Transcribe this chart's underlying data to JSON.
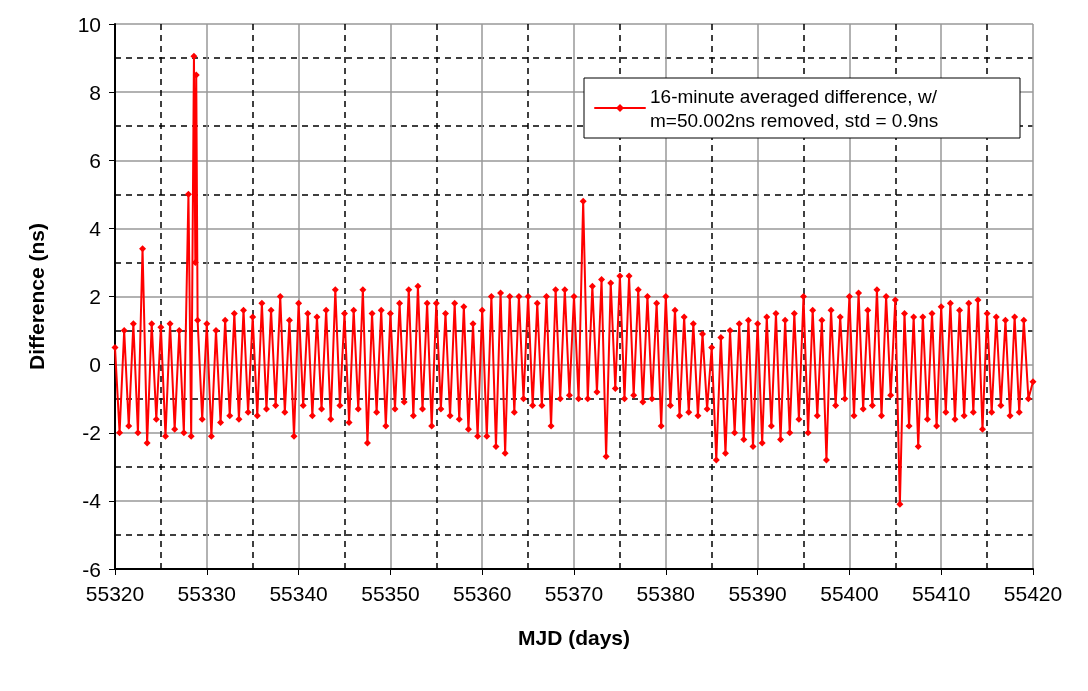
{
  "chart_data": {
    "type": "line",
    "xlabel": "MJD (days)",
    "ylabel": "Difference (ns)",
    "xlim": [
      55320,
      55420
    ],
    "xticks": [
      55320,
      55330,
      55340,
      55350,
      55360,
      55370,
      55380,
      55390,
      55400,
      55410,
      55420
    ],
    "ylim": [
      -6,
      10
    ],
    "yticks": [
      -6,
      -4,
      -2,
      0,
      2,
      4,
      6,
      8,
      10
    ],
    "grid": true,
    "legend": "top right",
    "marker": "diamond",
    "line_style": "solid",
    "series": [
      {
        "name": "16-minute averaged difference, w/ m=50.002ns removed, std = 0.9ns",
        "color": "#ff0000",
        "x": [
          55320,
          55320.5,
          55321,
          55321.5,
          55322,
          55322.5,
          55323,
          55323.5,
          55324,
          55324.5,
          55325,
          55325.5,
          55326,
          55326.5,
          55327,
          55327.5,
          55328,
          55328.3,
          55328.6,
          55328.75,
          55328.85,
          55329,
          55329.5,
          55330,
          55330.5,
          55331,
          55331.5,
          55332,
          55332.5,
          55333,
          55333.5,
          55334,
          55334.5,
          55335,
          55335.5,
          55336,
          55336.5,
          55337,
          55337.5,
          55338,
          55338.5,
          55339,
          55339.5,
          55340,
          55340.5,
          55341,
          55341.5,
          55342,
          55342.5,
          55343,
          55343.5,
          55344,
          55344.5,
          55345,
          55345.5,
          55346,
          55346.5,
          55347,
          55347.5,
          55348,
          55348.5,
          55349,
          55349.5,
          55350,
          55350.5,
          55351,
          55351.5,
          55352,
          55352.5,
          55353,
          55353.5,
          55354,
          55354.5,
          55355,
          55355.5,
          55356,
          55356.5,
          55357,
          55357.5,
          55358,
          55358.5,
          55359,
          55359.5,
          55360,
          55360.5,
          55361,
          55361.5,
          55362,
          55362.5,
          55363,
          55363.5,
          55364,
          55364.5,
          55365,
          55365.5,
          55366,
          55366.5,
          55367,
          55367.5,
          55368,
          55368.5,
          55369,
          55369.5,
          55370,
          55370.5,
          55371,
          55371.5,
          55372,
          55372.5,
          55373,
          55373.5,
          55374,
          55374.5,
          55375,
          55375.5,
          55376,
          55376.5,
          55377,
          55377.5,
          55378,
          55378.5,
          55379,
          55379.5,
          55380,
          55380.5,
          55381,
          55381.5,
          55382,
          55382.5,
          55383,
          55383.5,
          55384,
          55384.5,
          55385,
          55385.5,
          55386,
          55386.5,
          55387,
          55387.5,
          55388,
          55388.5,
          55389,
          55389.5,
          55390,
          55390.5,
          55391,
          55391.5,
          55392,
          55392.5,
          55393,
          55393.5,
          55394,
          55394.5,
          55395,
          55395.5,
          55396,
          55396.5,
          55397,
          55397.5,
          55398,
          55398.5,
          55399,
          55399.5,
          55400,
          55400.5,
          55401,
          55401.5,
          55402,
          55402.5,
          55403,
          55403.5,
          55404,
          55404.5,
          55405,
          55405.5,
          55406,
          55406.5,
          55407,
          55407.5,
          55408,
          55408.5,
          55409,
          55409.5,
          55410,
          55410.5,
          55411,
          55411.5,
          55412,
          55412.5,
          55413,
          55413.5,
          55414,
          55414.5,
          55415,
          55415.5,
          55416,
          55416.5,
          55417,
          55417.5,
          55418,
          55418.5,
          55419,
          55419.5,
          55420
        ],
        "values": [
          0.5,
          -2.0,
          1.0,
          -1.8,
          1.2,
          -2.0,
          3.4,
          -2.3,
          1.2,
          -1.6,
          1.1,
          -2.1,
          1.2,
          -1.9,
          1.0,
          -2.0,
          5.0,
          -2.1,
          9.05,
          3.0,
          8.5,
          1.3,
          -1.6,
          1.2,
          -2.1,
          1.0,
          -1.7,
          1.3,
          -1.5,
          1.5,
          -1.6,
          1.6,
          -1.4,
          1.4,
          -1.5,
          1.8,
          -1.3,
          1.6,
          -1.2,
          2.0,
          -1.4,
          1.3,
          -2.1,
          1.8,
          -1.2,
          1.5,
          -1.5,
          1.4,
          -1.3,
          1.6,
          -1.6,
          2.2,
          -1.2,
          1.5,
          -1.7,
          1.6,
          -1.3,
          2.2,
          -2.3,
          1.5,
          -1.4,
          1.6,
          -1.8,
          1.5,
          -1.3,
          1.8,
          -1.1,
          2.2,
          -1.5,
          2.3,
          -1.3,
          1.8,
          -1.8,
          1.8,
          -1.3,
          1.5,
          -1.5,
          1.8,
          -1.6,
          1.7,
          -1.9,
          1.2,
          -2.1,
          1.6,
          -2.1,
          2.0,
          -2.4,
          2.1,
          -2.6,
          2.0,
          -1.4,
          2.0,
          -1.0,
          2.0,
          -1.2,
          1.8,
          -1.2,
          2.0,
          -1.8,
          2.2,
          -1.0,
          2.2,
          -0.9,
          2.0,
          -1.0,
          4.8,
          -1.0,
          2.3,
          -0.8,
          2.5,
          -2.7,
          2.4,
          -0.7,
          2.6,
          -1.0,
          2.6,
          -0.9,
          2.2,
          -1.1,
          2.0,
          -1.0,
          1.8,
          -1.8,
          2.0,
          -1.2,
          1.6,
          -1.5,
          1.4,
          -1.4,
          1.2,
          -1.5,
          0.9,
          -1.3,
          0.5,
          -2.8,
          0.8,
          -2.6,
          1.0,
          -2.0,
          1.2,
          -2.2,
          1.3,
          -2.4,
          1.2,
          -2.3,
          1.4,
          -1.8,
          1.5,
          -2.2,
          1.3,
          -2.0,
          1.5,
          -1.6,
          2.0,
          -2.0,
          1.6,
          -1.5,
          1.3,
          -2.8,
          1.6,
          -1.2,
          1.4,
          -1.0,
          2.0,
          -1.5,
          2.1,
          -1.3,
          1.6,
          -1.2,
          2.2,
          -1.5,
          2.0,
          -0.9,
          1.9,
          -4.1,
          1.5,
          -1.8,
          1.4,
          -2.4,
          1.4,
          -1.6,
          1.5,
          -1.8,
          1.7,
          -1.4,
          1.8,
          -1.6,
          1.6,
          -1.5,
          1.8,
          -1.4,
          1.9,
          -1.9,
          1.5,
          -1.4,
          1.4,
          -1.2,
          1.3,
          -1.5,
          1.4,
          -1.4,
          1.3,
          -1.0,
          -0.5
        ]
      }
    ]
  }
}
